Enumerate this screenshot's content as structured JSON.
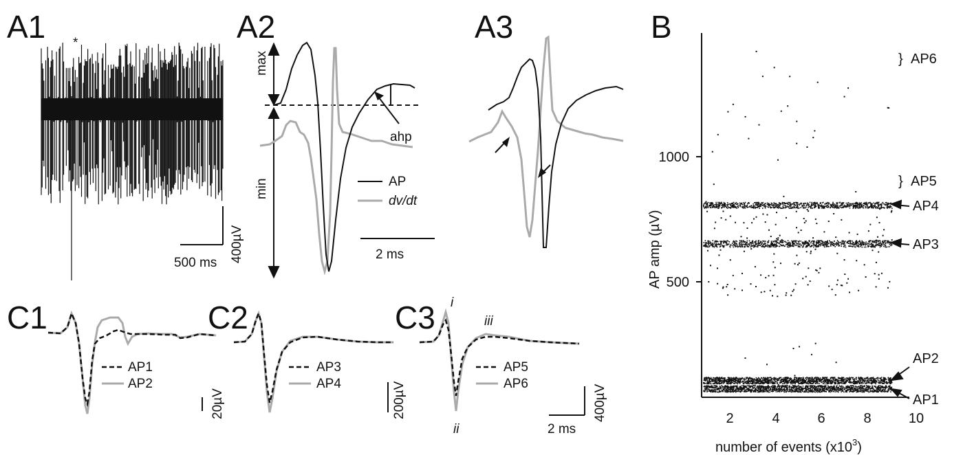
{
  "panels": {
    "A1": {
      "label": "A1",
      "star": "*",
      "scale_time": "500 ms",
      "scale_volt": "400µV"
    },
    "A2": {
      "label": "A2",
      "max": "max",
      "min": "min",
      "ahp": "ahp",
      "legend": [
        {
          "text": "AP",
          "color": "#111111",
          "italic": false
        },
        {
          "text": "dv/dt",
          "color": "#aaaaaa",
          "italic": true
        }
      ],
      "scale_time": "2 ms"
    },
    "A3": {
      "label": "A3"
    },
    "B": {
      "label": "B",
      "ylabel": "AP amp (µV)",
      "xlabel": "number of events (x10",
      "xlabel_sup": "3",
      "xlabel_end": ")",
      "yticks": [
        "1000",
        "500"
      ],
      "xticks": [
        "2",
        "4",
        "6",
        "8",
        "10"
      ],
      "units": [
        {
          "name": "AP6",
          "brace": "}"
        },
        {
          "name": "AP5",
          "brace": "}"
        },
        {
          "name": "AP4"
        },
        {
          "name": "AP3"
        },
        {
          "name": "AP2"
        },
        {
          "name": "AP1"
        }
      ]
    },
    "C1": {
      "label": "C1",
      "legend": [
        "AP1",
        "AP2"
      ],
      "scale_volt": "20µV"
    },
    "C2": {
      "label": "C2",
      "legend": [
        "AP3",
        "AP4"
      ],
      "scale_volt": "200µV"
    },
    "C3": {
      "label": "C3",
      "legend": [
        "AP5",
        "AP6"
      ],
      "scale_volt": "400µV",
      "scale_time": "2 ms",
      "markers": [
        "i",
        "ii",
        "iii"
      ]
    }
  },
  "colors": {
    "ap": "#111111",
    "dvdt": "#aaaaaa"
  }
}
